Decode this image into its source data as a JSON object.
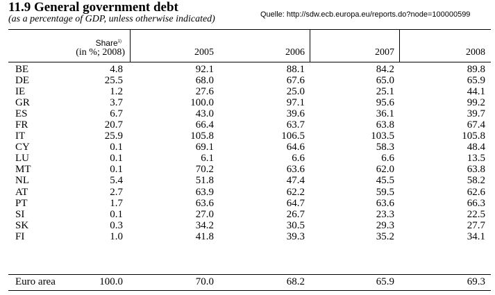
{
  "header": {
    "title": "11.9 General government debt",
    "subtitle": "(as a percentage of GDP, unless otherwise indicated)",
    "source": "Quelle: http://sdw.ecb.europa.eu/reports.do?node=100000599"
  },
  "table": {
    "columns": {
      "share_line1": "Share",
      "share_note": "1)",
      "share_line2": "(in %; 2008)",
      "y2005": "2005",
      "y2006": "2006",
      "y2007": "2007",
      "y2008": "2008"
    },
    "rows": [
      {
        "country": "BE",
        "share": "4.8",
        "y2005": "92.1",
        "y2006": "88.1",
        "y2007": "84.2",
        "y2008": "89.8"
      },
      {
        "country": "DE",
        "share": "25.5",
        "y2005": "68.0",
        "y2006": "67.6",
        "y2007": "65.0",
        "y2008": "65.9"
      },
      {
        "country": "IE",
        "share": "1.2",
        "y2005": "27.6",
        "y2006": "25.0",
        "y2007": "25.1",
        "y2008": "44.1"
      },
      {
        "country": "GR",
        "share": "3.7",
        "y2005": "100.0",
        "y2006": "97.1",
        "y2007": "95.6",
        "y2008": "99.2"
      },
      {
        "country": "ES",
        "share": "6.7",
        "y2005": "43.0",
        "y2006": "39.6",
        "y2007": "36.1",
        "y2008": "39.7"
      },
      {
        "country": "FR",
        "share": "20.7",
        "y2005": "66.4",
        "y2006": "63.7",
        "y2007": "63.8",
        "y2008": "67.4"
      },
      {
        "country": "IT",
        "share": "25.9",
        "y2005": "105.8",
        "y2006": "106.5",
        "y2007": "103.5",
        "y2008": "105.8"
      },
      {
        "country": "CY",
        "share": "0.1",
        "y2005": "69.1",
        "y2006": "64.6",
        "y2007": "58.3",
        "y2008": "48.4"
      },
      {
        "country": "LU",
        "share": "0.1",
        "y2005": "6.1",
        "y2006": "6.6",
        "y2007": "6.6",
        "y2008": "13.5"
      },
      {
        "country": "MT",
        "share": "0.1",
        "y2005": "70.2",
        "y2006": "63.6",
        "y2007": "62.0",
        "y2008": "63.8"
      },
      {
        "country": "NL",
        "share": "5.4",
        "y2005": "51.8",
        "y2006": "47.4",
        "y2007": "45.5",
        "y2008": "58.2"
      },
      {
        "country": "AT",
        "share": "2.7",
        "y2005": "63.9",
        "y2006": "62.2",
        "y2007": "59.5",
        "y2008": "62.6"
      },
      {
        "country": "PT",
        "share": "1.7",
        "y2005": "63.6",
        "y2006": "64.7",
        "y2007": "63.6",
        "y2008": "66.3"
      },
      {
        "country": "SI",
        "share": "0.1",
        "y2005": "27.0",
        "y2006": "26.7",
        "y2007": "23.3",
        "y2008": "22.5"
      },
      {
        "country": "SK",
        "share": "0.3",
        "y2005": "34.2",
        "y2006": "30.5",
        "y2007": "29.3",
        "y2008": "27.7"
      },
      {
        "country": "FI",
        "share": "1.0",
        "y2005": "41.8",
        "y2006": "39.3",
        "y2007": "35.2",
        "y2008": "34.1"
      }
    ],
    "total": {
      "country": "Euro area",
      "share": "100.0",
      "y2005": "70.0",
      "y2006": "68.2",
      "y2007": "65.9",
      "y2008": "69.3"
    }
  }
}
